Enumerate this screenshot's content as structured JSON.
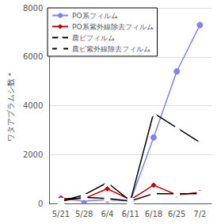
{
  "chart_data": {
    "type": "line",
    "categories": [
      "5/21",
      "5/28",
      "6/4",
      "6/11",
      "6/18",
      "6/25",
      "7/2"
    ],
    "series": [
      {
        "name": "PO系フィルム",
        "color": "#8080ff",
        "marker": "circle",
        "values": [
          200,
          100,
          150,
          100,
          2700,
          5400,
          7300
        ]
      },
      {
        "name": "PO系紫外線除去フィルム",
        "color": "#c00000",
        "marker": "diamond",
        "values": [
          200,
          200,
          600,
          150,
          750,
          350,
          450
        ]
      },
      {
        "name": "農ビフィルム",
        "color": "#000000",
        "marker": "triangle-open",
        "values": [
          100,
          350,
          850,
          100,
          3700,
          3100,
          2500
        ]
      },
      {
        "name": "農ビ紫外線除去フィルム",
        "color": "#000000",
        "marker": "square-open",
        "values": [
          100,
          250,
          200,
          100,
          400,
          400,
          400
        ]
      }
    ],
    "y_label": "ワタアブラムシ数＊",
    "ylim": [
      0,
      8000
    ],
    "yticks": [
      0,
      2000,
      4000,
      6000,
      8000
    ],
    "grid": true,
    "legend": "upper left"
  }
}
